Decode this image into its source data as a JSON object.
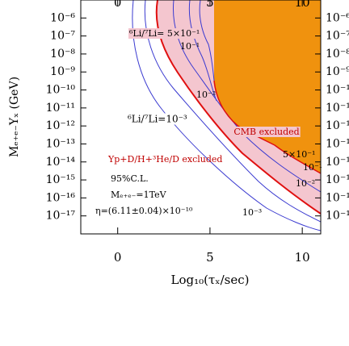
{
  "chart_data": {
    "type": "contour",
    "x_label": "Log₁₀(τₓ/sec)",
    "y_label": "Mₑ₊ₑ₋Yₓ (GeV)",
    "xlim": [
      -2,
      11
    ],
    "xticks": [
      0,
      5,
      10
    ],
    "ylim": [
      1e-18,
      1e-05
    ],
    "log_y": true,
    "yticks": [
      {
        "value": 1e-06,
        "label": "10⁻⁶"
      },
      {
        "value": 1e-07,
        "label": "10⁻⁷"
      },
      {
        "value": 1e-08,
        "label": "10⁻⁸"
      },
      {
        "value": 1e-09,
        "label": "10⁻⁹"
      },
      {
        "value": 1e-10,
        "label": "10⁻¹⁰"
      },
      {
        "value": 1e-11,
        "label": "10⁻¹¹"
      },
      {
        "value": 1e-12,
        "label": "10⁻¹²"
      },
      {
        "value": 1e-13,
        "label": "10⁻¹³"
      },
      {
        "value": 1e-14,
        "label": "10⁻¹⁴"
      },
      {
        "value": 1e-15,
        "label": "10⁻¹⁵"
      },
      {
        "value": 1e-16,
        "label": "10⁻¹⁶"
      },
      {
        "value": 1e-17,
        "label": "10⁻¹⁷"
      }
    ],
    "annotations": [
      "CMB excluded",
      "Yp+D/H+³He/D excluded",
      "⁶Li/⁷Li= 5×10⁻¹",
      "⁶Li/⁷Li=10⁻³",
      "95%C.L.",
      "Mₑ₊ₑ₋=1TeV",
      "η=(6.11±0.04)×10⁻¹⁰",
      "10⁻¹",
      "10⁻²",
      "5×10⁻¹",
      "10⁻¹",
      "10⁻²",
      "10⁻³"
    ]
  }
}
